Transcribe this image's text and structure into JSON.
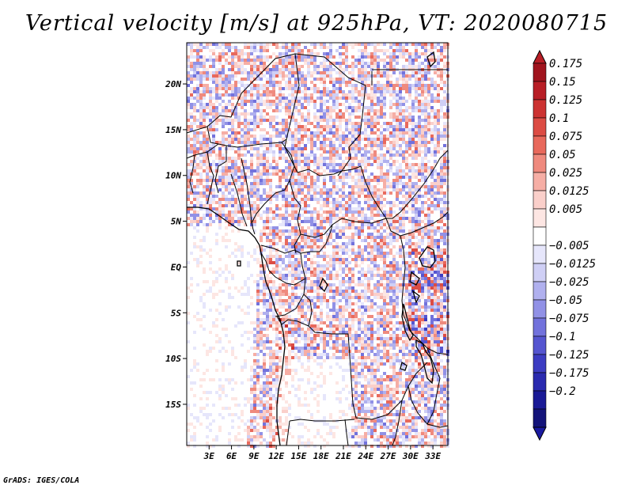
{
  "title": "Vertical velocity [m/s] at 925hPa, VT: 2020080715",
  "credit": "GrADS: IGES/COLA",
  "chart_data": {
    "type": "heatmap",
    "title": "Vertical velocity [m/s] at 925hPa, VT: 2020080715",
    "variable": "Vertical velocity",
    "units": "m/s",
    "level": "925hPa",
    "valid_time": "2020080715",
    "lon_range": [
      0,
      35
    ],
    "lat_range": [
      -19.5,
      24.5
    ],
    "x_ticks": [
      {
        "value": 3,
        "label": "3E"
      },
      {
        "value": 6,
        "label": "6E"
      },
      {
        "value": 9,
        "label": "9E"
      },
      {
        "value": 12,
        "label": "12E"
      },
      {
        "value": 15,
        "label": "15E"
      },
      {
        "value": 18,
        "label": "18E"
      },
      {
        "value": 21,
        "label": "21E"
      },
      {
        "value": 24,
        "label": "24E"
      },
      {
        "value": 27,
        "label": "27E"
      },
      {
        "value": 30,
        "label": "30E"
      },
      {
        "value": 33,
        "label": "33E"
      }
    ],
    "y_ticks": [
      {
        "value": 20,
        "label": "20N"
      },
      {
        "value": 15,
        "label": "15N"
      },
      {
        "value": 10,
        "label": "10N"
      },
      {
        "value": 5,
        "label": "5N"
      },
      {
        "value": 0,
        "label": "EQ"
      },
      {
        "value": -5,
        "label": "5S"
      },
      {
        "value": -10,
        "label": "10S"
      },
      {
        "value": -15,
        "label": "15S"
      }
    ],
    "colorbar": [
      {
        "label": "0.175",
        "color": "#a0141e"
      },
      {
        "label": "0.15",
        "color": "#b81e26"
      },
      {
        "label": "0.125",
        "color": "#cc3332"
      },
      {
        "label": "0.1",
        "color": "#dc4c44"
      },
      {
        "label": "0.075",
        "color": "#e8695c"
      },
      {
        "label": "0.05",
        "color": "#ef8a7e"
      },
      {
        "label": "0.025",
        "color": "#f6aea5"
      },
      {
        "label": "0.0125",
        "color": "#facfca"
      },
      {
        "label": "0.005",
        "color": "#fde6e3"
      },
      {
        "label": "",
        "color": "#ffffff"
      },
      {
        "label": "−0.005",
        "color": "#e6e6fb"
      },
      {
        "label": "−0.0125",
        "color": "#cfcff5"
      },
      {
        "label": "−0.025",
        "color": "#b0b0ee"
      },
      {
        "label": "−0.05",
        "color": "#9191e6"
      },
      {
        "label": "−0.075",
        "color": "#7272dc"
      },
      {
        "label": "−0.1",
        "color": "#5555d0"
      },
      {
        "label": "−0.125",
        "color": "#3c3cc2"
      },
      {
        "label": "−0.175",
        "color": "#2a2aaf"
      },
      {
        "label": "−0.2",
        "color": "#1a1a96"
      },
      {
        "label": "",
        "color": "#14147a"
      }
    ],
    "colorbar_max_color": "#b81e26",
    "colorbar_min_color": "#1a1aa0",
    "coast_color": "#000000"
  }
}
